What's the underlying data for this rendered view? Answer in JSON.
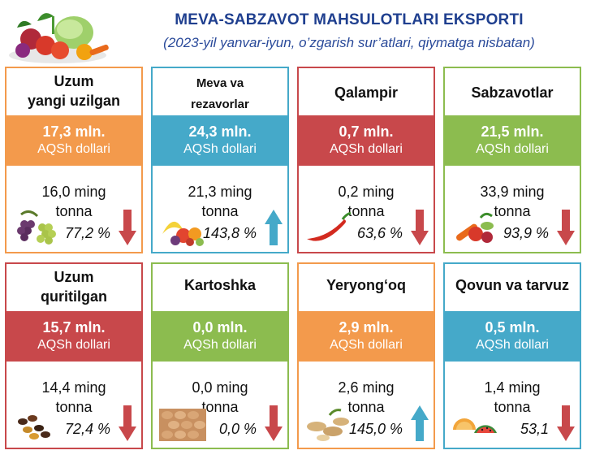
{
  "header": {
    "title": "MEVA-SABZAVOT MAHSULOTLARI EKSPORTI",
    "subtitle": "(2023-yil yanvar-iyun, o’zgarish sur’atlari, qiymatga nisbatan)"
  },
  "cards": [
    {
      "name": "Uzum yangi uzilgan",
      "line1": "Uzum",
      "line2": "yangi uzilgan",
      "value": "17,3 mln.",
      "unit": "AQSh dollari",
      "ton1": "16,0 ming",
      "ton2": "tonna",
      "pct": "77,2 %",
      "trend": "down",
      "color": "#f39a4c",
      "icon": "grapes-icon"
    },
    {
      "name": "Meva va rezavorlar",
      "line1": "Meva va",
      "line2": "rezavorlar",
      "value": "24,3 mln.",
      "unit": "AQSh dollari",
      "ton1": "21,3 ming",
      "ton2": "tonna",
      "pct": "143,8 %",
      "trend": "up",
      "color": "#45a9c9",
      "icon": "fruits-icon"
    },
    {
      "name": "Qalampir",
      "line1": "Qalampir",
      "line2": "",
      "value": "0,7 mln.",
      "unit": "AQSh dollari",
      "ton1": "0,2 ming",
      "ton2": "tonna",
      "pct": "63,6 %",
      "trend": "down",
      "color": "#c8484b",
      "icon": "chili-pepper-icon"
    },
    {
      "name": "Sabzavotlar",
      "line1": "Sabzavotlar",
      "line2": "",
      "value": "21,5 mln.",
      "unit": "AQSh dollari",
      "ton1": "33,9 ming",
      "ton2": "tonna",
      "pct": "93,9 %",
      "trend": "down",
      "color": "#8cbc4f",
      "icon": "vegetables-icon"
    },
    {
      "name": "Uzum quritilgan",
      "line1": "Uzum",
      "line2": "quritilgan",
      "value": "15,7 mln.",
      "unit": "AQSh dollari",
      "ton1": "14,4 ming",
      "ton2": "tonna",
      "pct": "72,4 %",
      "trend": "down",
      "color": "#c8484b",
      "icon": "raisins-icon"
    },
    {
      "name": "Kartoshka",
      "line1": "Kartoshka",
      "line2": "",
      "value": "0,0 mln.",
      "unit": "AQSh dollari",
      "ton1": "0,0 ming",
      "ton2": "tonna",
      "pct": "0,0 %",
      "trend": "down",
      "color": "#8cbc4f",
      "icon": "potato-icon"
    },
    {
      "name": "Yeryong'oq",
      "line1": "Yeryong‘oq",
      "line2": "",
      "value": "2,9 mln.",
      "unit": "AQSh dollari",
      "ton1": "2,6 ming",
      "ton2": "tonna",
      "pct": "145,0 %",
      "trend": "up",
      "color": "#f39a4c",
      "icon": "peanut-icon"
    },
    {
      "name": "Qovun va tarvuz",
      "line1": "Qovun va tarvuz",
      "line2": "",
      "value": "0,5 mln.",
      "unit": "AQSh dollari",
      "ton1": "1,4 ming",
      "ton2": "tonna",
      "pct": "53,1",
      "trend": "down",
      "color": "#45a9c9",
      "icon": "melon-icon"
    }
  ],
  "colors": {
    "title": "#1f3f8f",
    "down": "#c8484b",
    "up": "#45a9c9"
  }
}
